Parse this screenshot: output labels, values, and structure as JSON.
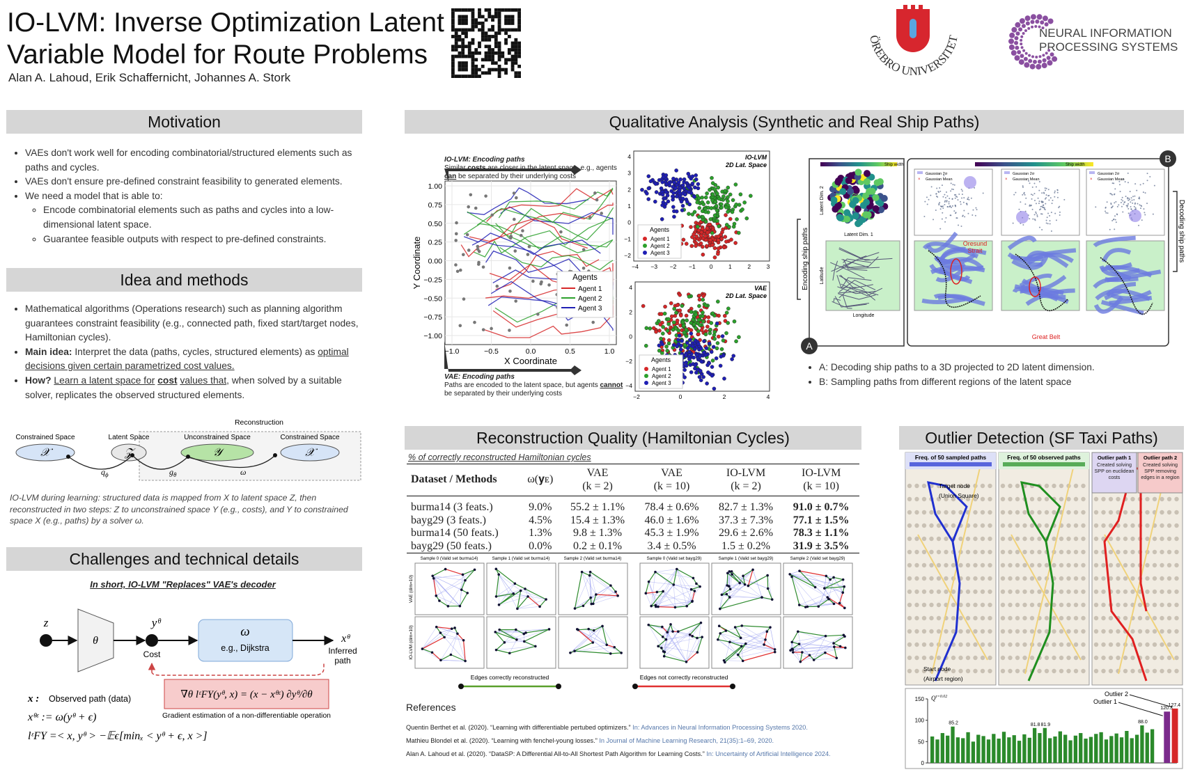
{
  "header": {
    "title": [
      "IO-LVM: Inverse Optimization Latent",
      "Variable Model for Route Problems"
    ],
    "authors": "Alan A. Lahoud, Erik Schaffernicht, Johannes A. Stork",
    "orebro": "ÖREBRO UNIVERSITET",
    "neurips": [
      "NEURAL INFORMATION",
      "PROCESSING SYSTEMS"
    ]
  },
  "motivation": {
    "title": "Motivation",
    "items": [
      "VAEs don't work well for encoding combinatorial/structured elements such as paths and cycles.",
      "VAEs don't ensure pre-defined constraint feasibility to generated elements.",
      "We need a model that is able to:"
    ],
    "subitems": [
      "Encode combinatorial elements such as paths and cycles into a low-dimensional latent space.",
      "Guarantee feasible outputs with respect to pre-defined constraints."
    ]
  },
  "idea": {
    "title": "Idea and methods",
    "item1": "Mathematical algorithms (Operations research) such as planning algorithm guarantees constraint feasibility (e.g., connected path, fixed start/target nodes, Hamiltonian cycles).",
    "item2": {
      "lead": "Main idea:",
      "text": "Interpret the data (paths, cycles, structured elements) as",
      "underline": "optimal decisions given certain parametrized cost values."
    },
    "item3": {
      "lead": "How?",
      "u1": "Learn a latent space for",
      "bold": "cost",
      "u2": "values that",
      "text": ", when solved by a suitable solver, replicates the observed structured elements."
    },
    "diagram": {
      "reconstruction": "Reconstruction",
      "spaces": [
        "Constrained Space",
        "Latent Space",
        "Unconstrained Space",
        "Constrained Space"
      ],
      "symbols": [
        "𝒳",
        "𝒵",
        "𝒴",
        "𝒳"
      ],
      "edges": [
        {
          "base": "q",
          "sub": "ϕ"
        },
        {
          "base": "g",
          "sub": "θ"
        },
        {
          "base": "ω"
        }
      ]
    },
    "caption": "IO-LVM during learning: structured data is mapped from X to latent space Z, then reconstructed in two steps: Z to unconstrained space Y (e.g., costs), and Y to constrained space X (e.g., paths) by a solver ω."
  },
  "challenges": {
    "title": "Challenges and technical details",
    "subtitle": "In short, IO-LVM \"Replaces\" VAE's decoder",
    "z": "z",
    "theta": "θ",
    "y": "yᶿ",
    "cost": "Cost",
    "omega": "ω",
    "solver": "e.g., Dijkstra",
    "x": "xᶿ",
    "inferred": [
      "Inferred",
      "path"
    ],
    "gradient": "∇θ lᵋFY(yᶿ, x) = (x − xᶿᵋ) ∂yᶿ/∂θ",
    "gradient_caption": "Gradient estimation of a non-differentiable operation",
    "defs": [
      {
        "sym": "x :",
        "text": "Observed path (data)"
      },
      {
        "sym": "xᶿᵋ := ω(yᶿ + ϵ)"
      },
      {
        "sym": "lᵋFY =< x, yᶿ > −𝔼ϵ[minₓ < yᶿ + ϵ, x >]"
      }
    ]
  },
  "qualitative": {
    "title": "Qualitative Analysis (Synthetic and Real Ship Paths)",
    "iolvm_note": {
      "head": "IO-LVM: Encoding paths",
      "p1": "Similar",
      "b1": "costs",
      "p2": "are closer in the latent space, e.g., agents",
      "b2": "can",
      "p3": "be separated by their underlying costs"
    },
    "vae_note": {
      "head": "VAE: Encoding paths",
      "p1": "Paths are encoded to the latent space, but agents",
      "b1": "cannot",
      "p2": "be separated by their underlying costs"
    },
    "paths_plot": {
      "ylabel": "Y Coordinate",
      "xlabel": "X Coordinate",
      "yticks": [
        "1.00",
        "0.75",
        "0.50",
        "0.25",
        "0.00",
        "−0.25",
        "−0.50",
        "−0.75",
        "−1.00"
      ],
      "xticks": [
        "−1.0",
        "−0.5",
        "0.0",
        "0.5",
        "1.0"
      ],
      "legend_title": "Agents",
      "agents": [
        {
          "name": "Agent 1",
          "color": "#d62728"
        },
        {
          "name": "Agent 2",
          "color": "#2ca02c"
        },
        {
          "name": "Agent 3",
          "color": "#1f1fb4"
        }
      ]
    },
    "scatter_iolvm": {
      "title": [
        "IO-LVM",
        "2D Lat. Space"
      ],
      "yticks": [
        "4",
        "3",
        "2",
        "1",
        "0",
        "−1",
        "−2"
      ],
      "xticks": [
        "−4",
        "−3",
        "−2",
        "−1",
        "0",
        "1",
        "2",
        "3"
      ]
    },
    "scatter_vae": {
      "title": [
        "VAE",
        "2D Lat. Space"
      ],
      "yticks": [
        "4",
        "2",
        "0",
        "−2",
        "−4"
      ],
      "xticks": [
        "−2",
        "0",
        "2",
        "4"
      ]
    },
    "fig_a": {
      "label": "A",
      "side": "Encoding ship paths",
      "colorbar": "Ship width",
      "lat2": "Latent Dim. 2",
      "lat1": "Latent Dim. 1",
      "lat": "Latitude",
      "lon": "Longitude"
    },
    "fig_b": {
      "label": "B",
      "side": "Decoding ship paths",
      "colorbar": "Ship width",
      "legend": [
        "Gaussian 2σ",
        "Gaussian Mean"
      ],
      "oresund": [
        "Oresund",
        "Strait"
      ],
      "belt": "Great Belt"
    },
    "bullets": [
      "A: Decoding ship paths to a 3D projected to 2D latent dimension.",
      "B: Sampling paths from different regions of the latent space"
    ]
  },
  "recon": {
    "title": "Reconstruction Quality (Hamiltonian Cycles)",
    "caption": "% of correctly reconstructed Hamiltonian cycles",
    "columns": [
      [
        "Dataset / Methods"
      ],
      [
        "ω(𝐲ᴇ)"
      ],
      [
        "VAE",
        "(k = 2)"
      ],
      [
        "VAE",
        "(k = 10)"
      ],
      [
        "IO-LVM",
        "(k = 2)"
      ],
      [
        "IO-LVM",
        "(k = 10)"
      ]
    ],
    "rows": [
      [
        "burma14 (3 feats.)",
        "9.0%",
        "55.2 ± 1.1%",
        "78.4 ± 0.6%",
        "82.7 ± 1.3%",
        "91.0 ± 0.7%"
      ],
      [
        "bayg29 (3 feats.)",
        "4.5%",
        "15.4 ± 1.3%",
        "46.0 ± 1.6%",
        "37.3 ± 7.3%",
        "77.1 ± 1.5%"
      ],
      [
        "burma14 (50 feats.)",
        "1.3%",
        "9.8 ± 1.3%",
        "45.3 ± 1.9%",
        "29.6 ± 2.6%",
        "78.3 ± 1.1%"
      ],
      [
        "bayg29 (50 feats.)",
        "0.0%",
        "0.2 ± 0.1%",
        "3.4 ± 0.5%",
        "1.5 ± 0.2%",
        "31.9 ± 3.5%"
      ]
    ],
    "samples": [
      "Sample 0 (Valid set burma14)",
      "Sample 1 (Valid set burma14)",
      "Sample 2 (Valid set burma14)",
      "Sample 0 (Valid set bayg29)",
      "Sample 1 (Valid set bayg29)",
      "Sample 2 (Valid set bayg29)"
    ],
    "sample_rows": [
      "VAE (dim=10)",
      "IO-LVM (dim=10)"
    ],
    "edge_legend": [
      "Edges correctly reconstructed",
      "Edges not correctly reconstructed"
    ]
  },
  "references": {
    "title": "References",
    "items": [
      {
        "text": "Quentin Berthet et al. (2020). “Learning with differentiable pertubed optimizers.”",
        "venue": "In: Advances in Neural Information Processing Systems 2020."
      },
      {
        "text": "Mathieu Blondel et al. (2020). “Learning with fenchel-young losses.”",
        "venue": "In Journal of Machine Learning Research, 21(35):1–69, 2020."
      },
      {
        "text": "Alan A. Lahoud et al. (2020). “DataSP: A Differential All-to-All Shortest Path Algorithm for Learning Costs.”",
        "venue": "In: Uncertainty of Artificial Intelligence 2024."
      }
    ]
  },
  "outlier": {
    "title": "Outlier Detection (SF Taxi Paths)",
    "panels": [
      "Freq. of 50 sampled paths",
      "Freq. of 50 observed paths"
    ],
    "target": [
      "Target node",
      "(Union Square)"
    ],
    "start": [
      "Start node",
      "(Airport region)"
    ],
    "boxes": [
      {
        "title": "Outlier path 1",
        "text": "Created solving SPP on euclidean costs"
      },
      {
        "title": "Outlier path 2",
        "text": "Created solving SPP removing edges in a region"
      }
    ],
    "chart_data": {
      "type": "bar",
      "label": {
        "base": "Q",
        "sup": "τ=0.02"
      },
      "ylim": [
        0,
        150
      ],
      "yticks": [
        0,
        50,
        100,
        150
      ],
      "annotations": [
        "Outlier 2",
        "Outlier 1"
      ],
      "series": [
        {
          "color": "#2b8a2b",
          "values": [
            62,
            55,
            70,
            64,
            85.2,
            60,
            58,
            72,
            50,
            66,
            63,
            55,
            68,
            57,
            73,
            60,
            65,
            52,
            67,
            59,
            81.8,
            70,
            81.9,
            58,
            62,
            74,
            66,
            53,
            64,
            70,
            57,
            61,
            68,
            72,
            55,
            63,
            69,
            60,
            75,
            58,
            66,
            88,
            71,
            79
          ],
          "value_labels": [
            null,
            null,
            null,
            null,
            "85.2",
            null,
            null,
            null,
            null,
            null,
            null,
            null,
            null,
            null,
            null,
            null,
            null,
            null,
            null,
            null,
            "81.8",
            null,
            "81.9",
            null,
            null,
            null,
            null,
            null,
            null,
            null,
            null,
            null,
            null,
            null,
            null,
            null,
            null,
            null,
            null,
            null,
            null,
            "88.0",
            null,
            null
          ]
        },
        {
          "color": "#7b2a8c",
          "values": [
            120.3
          ],
          "value_labels": [
            "120.3"
          ]
        },
        {
          "color": "#d62728",
          "values": [
            127.4
          ],
          "value_labels": [
            "127.4"
          ]
        }
      ]
    }
  }
}
